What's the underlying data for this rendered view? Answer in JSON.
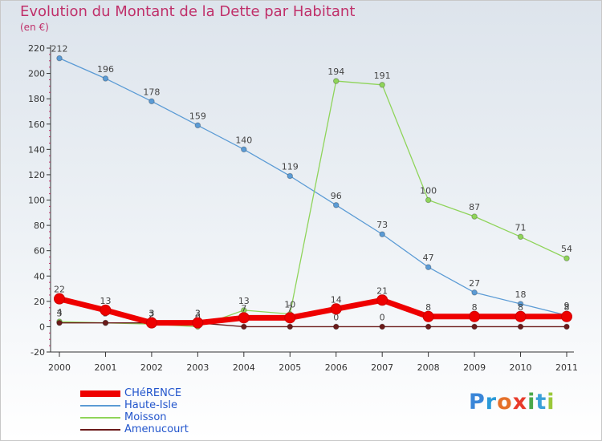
{
  "header": {
    "title": "Evolution du Montant de la Dette par Habitant",
    "subtitle": "(en €)"
  },
  "logo": {
    "letters": [
      "P",
      "r",
      "o",
      "x",
      "i",
      "t",
      "i"
    ]
  },
  "colors": {
    "title": "#c0306a",
    "legend_text": "#2255cc",
    "logo_letters": [
      "#3a86d8",
      "#2a9ad8",
      "#e5702a",
      "#e83a2a",
      "#4aa84a",
      "#3aa0d8",
      "#9ac83a"
    ]
  },
  "chart_data": {
    "type": "line",
    "title": "Evolution du Montant de la Dette par Habitant",
    "ylabel": "(en €)",
    "xlabel": "",
    "x": [
      "2000",
      "2001",
      "2002",
      "2003",
      "2004",
      "2005",
      "2006",
      "2007",
      "2008",
      "2009",
      "2010",
      "2011"
    ],
    "ylim": [
      -20,
      220
    ],
    "yticks": [
      "-20",
      "0",
      "20",
      "40",
      "60",
      "80",
      "100",
      "120",
      "140",
      "160",
      "180",
      "200",
      "220"
    ],
    "grid": false,
    "legend_position": "bottom-left",
    "series": [
      {
        "name": "Haute-Isle",
        "color": "#5b9bd5",
        "values": [
          212,
          196,
          178,
          159,
          140,
          119,
          96,
          73,
          47,
          27,
          18,
          9
        ],
        "labels": [
          "212",
          "196",
          "178",
          "159",
          "140",
          "119",
          "96",
          "73",
          "47",
          "27",
          "18",
          "9"
        ]
      },
      {
        "name": "Moisson",
        "color": "#8fd45a",
        "values": [
          4,
          3,
          2,
          0,
          13,
          10,
          194,
          191,
          100,
          87,
          71,
          54
        ],
        "labels": [
          "4",
          "3",
          "2",
          "0",
          "13",
          "10",
          "194",
          "191",
          "100",
          "87",
          "71",
          "54"
        ]
      },
      {
        "name": "Amenucourt",
        "color": "#6b1a1a",
        "values": [
          3,
          3,
          3,
          3,
          0,
          0,
          0,
          0,
          0,
          0,
          0,
          0
        ],
        "labels": [
          "3",
          "3",
          "3",
          "3",
          "0",
          "0",
          "0",
          "0",
          "0",
          "0",
          "0",
          "0"
        ]
      },
      {
        "name": "CHéRENCE",
        "color": "#ee0000",
        "values": [
          22,
          13,
          3,
          3,
          7,
          7,
          14,
          21,
          8,
          8,
          8,
          8
        ],
        "labels": [
          "22",
          "13",
          "3",
          "3",
          "7",
          "7",
          "14",
          "21",
          "8",
          "8",
          "8",
          "8"
        ]
      }
    ],
    "legend": [
      {
        "name": "CHéRENCE",
        "color": "#ee0000",
        "thick": true
      },
      {
        "name": "Haute-Isle",
        "color": "#5b9bd5",
        "thick": false
      },
      {
        "name": "Moisson",
        "color": "#8fd45a",
        "thick": false
      },
      {
        "name": "Amenucourt",
        "color": "#6b1a1a",
        "thick": false
      }
    ]
  }
}
